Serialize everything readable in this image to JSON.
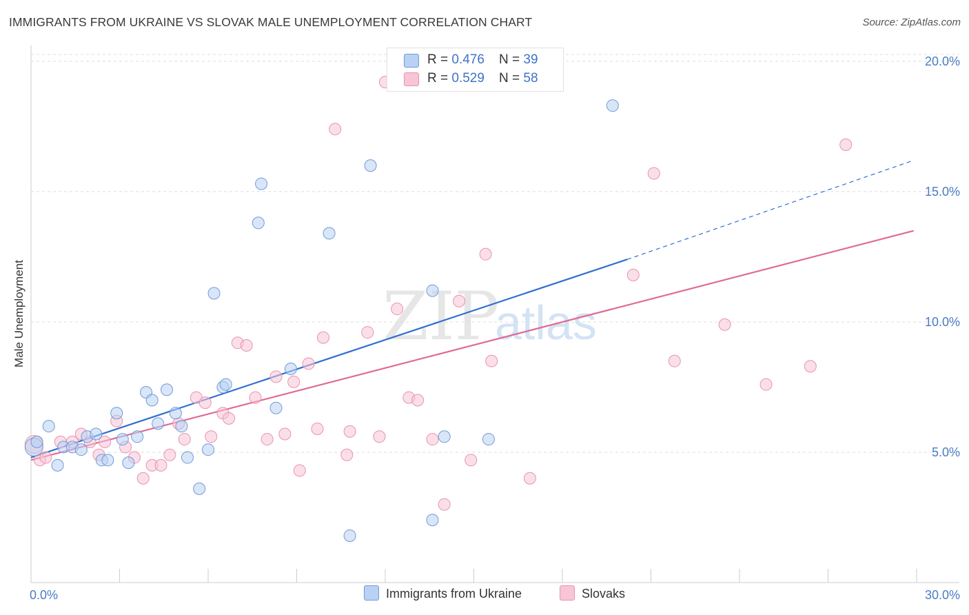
{
  "header": {
    "title": "IMMIGRANTS FROM UKRAINE VS SLOVAK MALE UNEMPLOYMENT CORRELATION CHART",
    "source": "Source: ZipAtlas.com"
  },
  "watermark": {
    "zip": "ZIP",
    "atlas": "atlas"
  },
  "legend": {
    "series": [
      {
        "r_label": "R = ",
        "r_value": "0.476",
        "n_label": "N = ",
        "n_value": "39"
      },
      {
        "r_label": "R = ",
        "r_value": "0.529",
        "n_label": "N = ",
        "n_value": "58"
      }
    ]
  },
  "colors": {
    "ukraine_fill": "#b9d1f3",
    "ukraine_stroke": "#6f9ad8",
    "ukraine_line": "#2f6fd0",
    "slovaks_fill": "#f8c5d5",
    "slovaks_stroke": "#e892ae",
    "slovaks_line": "#e06a96",
    "tick_label": "#4a7cc4"
  },
  "chart_data": {
    "type": "scatter",
    "title": "IMMIGRANTS FROM UKRAINE VS SLOVAK MALE UNEMPLOYMENT CORRELATION CHART",
    "xlabel": "",
    "ylabel": "Male Unemployment",
    "xlim": [
      0,
      30
    ],
    "ylim": [
      0,
      20.5
    ],
    "x_tick_labels": [
      "0.0%",
      "30.0%"
    ],
    "y_ticks": [
      5,
      10,
      15,
      20
    ],
    "y_tick_labels": [
      "5.0%",
      "10.0%",
      "15.0%",
      "20.0%"
    ],
    "grid": "horizontal dashed",
    "legend_position": "top-center and bottom",
    "series": [
      {
        "name": "Immigrants from Ukraine",
        "color": "#6f9ad8",
        "points": [
          [
            0.1,
            5.2
          ],
          [
            0.2,
            5.4
          ],
          [
            0.6,
            6.0
          ],
          [
            0.9,
            4.5
          ],
          [
            1.1,
            5.2
          ],
          [
            1.4,
            5.2
          ],
          [
            1.7,
            5.1
          ],
          [
            1.9,
            5.6
          ],
          [
            2.2,
            5.7
          ],
          [
            2.4,
            4.7
          ],
          [
            2.6,
            4.7
          ],
          [
            2.9,
            6.5
          ],
          [
            3.1,
            5.5
          ],
          [
            3.3,
            4.6
          ],
          [
            3.6,
            5.6
          ],
          [
            3.9,
            7.3
          ],
          [
            4.1,
            7.0
          ],
          [
            4.3,
            6.1
          ],
          [
            4.6,
            7.4
          ],
          [
            4.9,
            6.5
          ],
          [
            5.1,
            6.0
          ],
          [
            5.3,
            4.8
          ],
          [
            5.7,
            3.6
          ],
          [
            6.0,
            5.1
          ],
          [
            6.2,
            11.1
          ],
          [
            6.5,
            7.5
          ],
          [
            6.6,
            7.6
          ],
          [
            7.7,
            13.8
          ],
          [
            7.8,
            15.3
          ],
          [
            8.3,
            6.7
          ],
          [
            8.8,
            8.2
          ],
          [
            10.1,
            13.4
          ],
          [
            10.8,
            1.8
          ],
          [
            11.5,
            16.0
          ],
          [
            13.6,
            2.4
          ],
          [
            13.6,
            11.2
          ],
          [
            14.0,
            5.6
          ],
          [
            15.5,
            5.5
          ],
          [
            19.7,
            18.3
          ]
        ],
        "trend": {
          "x": [
            0,
            20.2
          ],
          "y": [
            4.8,
            12.4
          ]
        },
        "trend_extension": {
          "x": [
            20.2,
            29.9
          ],
          "y": [
            12.4,
            16.2
          ]
        }
      },
      {
        "name": "Slovaks",
        "color": "#e892ae",
        "points": [
          [
            0.1,
            5.3
          ],
          [
            0.3,
            4.7
          ],
          [
            0.5,
            4.8
          ],
          [
            1.0,
            5.4
          ],
          [
            1.4,
            5.4
          ],
          [
            1.7,
            5.7
          ],
          [
            2.0,
            5.4
          ],
          [
            2.3,
            4.9
          ],
          [
            2.5,
            5.4
          ],
          [
            2.9,
            6.2
          ],
          [
            3.2,
            5.2
          ],
          [
            3.5,
            4.8
          ],
          [
            3.8,
            4.0
          ],
          [
            4.1,
            4.5
          ],
          [
            4.4,
            4.5
          ],
          [
            4.7,
            4.9
          ],
          [
            5.0,
            6.1
          ],
          [
            5.2,
            5.5
          ],
          [
            5.6,
            7.1
          ],
          [
            5.9,
            6.9
          ],
          [
            6.1,
            5.6
          ],
          [
            6.5,
            6.5
          ],
          [
            6.7,
            6.3
          ],
          [
            7.0,
            9.2
          ],
          [
            7.3,
            9.1
          ],
          [
            7.6,
            7.1
          ],
          [
            8.0,
            5.5
          ],
          [
            8.3,
            7.9
          ],
          [
            8.6,
            5.7
          ],
          [
            8.9,
            7.7
          ],
          [
            9.1,
            4.3
          ],
          [
            9.4,
            8.4
          ],
          [
            9.7,
            5.9
          ],
          [
            9.9,
            9.4
          ],
          [
            10.3,
            17.4
          ],
          [
            10.7,
            4.9
          ],
          [
            10.8,
            5.8
          ],
          [
            11.4,
            9.6
          ],
          [
            11.8,
            5.6
          ],
          [
            12.0,
            19.2
          ],
          [
            12.4,
            10.5
          ],
          [
            12.8,
            7.1
          ],
          [
            13.1,
            7.0
          ],
          [
            13.6,
            5.5
          ],
          [
            14.0,
            3.0
          ],
          [
            14.5,
            10.8
          ],
          [
            14.9,
            4.7
          ],
          [
            15.4,
            12.6
          ],
          [
            15.6,
            8.5
          ],
          [
            16.9,
            19.9
          ],
          [
            16.9,
            4.0
          ],
          [
            20.4,
            11.8
          ],
          [
            21.1,
            15.7
          ],
          [
            21.8,
            8.5
          ],
          [
            23.5,
            9.9
          ],
          [
            24.9,
            7.6
          ],
          [
            26.4,
            8.3
          ],
          [
            27.6,
            16.8
          ]
        ],
        "trend": {
          "x": [
            0,
            29.9
          ],
          "y": [
            4.7,
            13.5
          ]
        }
      }
    ]
  },
  "bottom_legend": {
    "ukraine_label": "Immigrants from Ukraine",
    "slovaks_label": "Slovaks"
  }
}
